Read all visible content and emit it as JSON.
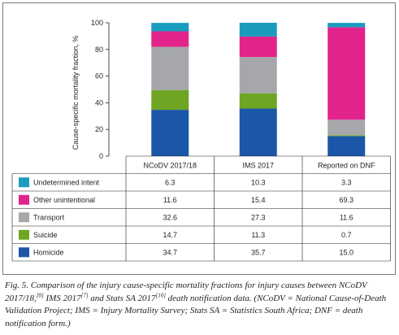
{
  "chart_data": {
    "type": "bar",
    "stacked": true,
    "ylabel": "Cause-specific mortality fraction, %",
    "ylim": [
      0,
      100
    ],
    "yticks": [
      0,
      20,
      40,
      60,
      80,
      100
    ],
    "categories": [
      "NCoDV 2017/18",
      "IMS 2017",
      "Reported on DNF"
    ],
    "series": [
      {
        "name": "Homicide",
        "color": "#1b56a8",
        "values": [
          34.7,
          35.7,
          15.0
        ],
        "labels": [
          "34.7",
          "35.7",
          "15.0"
        ]
      },
      {
        "name": "Suicide",
        "color": "#6ea522",
        "values": [
          14.7,
          11.3,
          0.7
        ],
        "labels": [
          "14.7",
          "11.3",
          "0.7"
        ]
      },
      {
        "name": "Transport",
        "color": "#a5a7aa",
        "values": [
          32.6,
          27.3,
          11.6
        ],
        "labels": [
          "32.6",
          "27.3",
          "11.6"
        ]
      },
      {
        "name": "Other unintentional",
        "color": "#e2238c",
        "values": [
          11.6,
          15.4,
          69.3
        ],
        "labels": [
          "11.6",
          "15.4",
          "69.3"
        ]
      },
      {
        "name": "Undetermined intent",
        "color": "#1a9cbf",
        "values": [
          6.3,
          10.3,
          3.3
        ],
        "labels": [
          "6.3",
          "10.3",
          "3.3"
        ]
      }
    ],
    "table_row_order": [
      "Undetermined intent",
      "Other unintentional",
      "Transport",
      "Suicide",
      "Homicide"
    ],
    "grid": false,
    "legend": "table"
  },
  "caption": {
    "fig_label": "Fig. 5.",
    "part1": " Comparison of the injury cause-specific mortality fractions for injury causes between NCoDV 2017/18,",
    "ref1": "[8]",
    "part2": " IMS 2017",
    "ref2": "[7]",
    "part3": " and Stats SA 2017",
    "ref3": "[10]",
    "part4": " death notification data. (NCoDV = National Cause-of-Death Validation Project; IMS = Injury Mortality Survey; Stats SA = Statistics South Africa; DNF = death notification form.)"
  }
}
